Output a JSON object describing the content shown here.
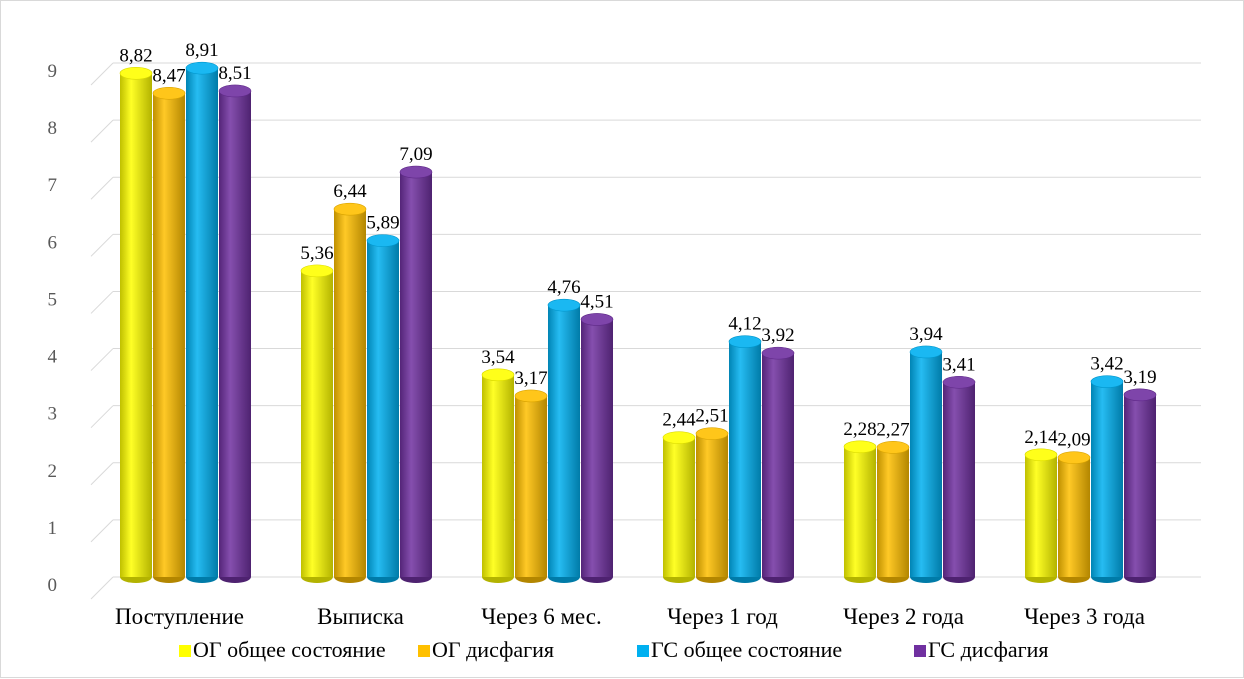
{
  "chart_data": {
    "type": "bar",
    "categories": [
      "Поступление",
      "Выписка",
      "Через 6 мес.",
      "Через 1 год",
      "Через 2 года",
      "Через 3 года"
    ],
    "series": [
      {
        "name": "ОГ общее состояние",
        "color": "#ffff00",
        "values": [
          8.82,
          5.36,
          3.54,
          2.44,
          2.28,
          2.14
        ],
        "labels": [
          "8,82",
          "5,36",
          "3,54",
          "2,44",
          "2,28",
          "2,14"
        ]
      },
      {
        "name": "ОГ дисфагия",
        "color": "#ffc000",
        "values": [
          8.47,
          6.44,
          3.17,
          2.51,
          2.27,
          2.09
        ],
        "labels": [
          "8,47",
          "6,44",
          "3,17",
          "2,51",
          "2,27",
          "2,09"
        ]
      },
      {
        "name": "ГС общее состояние",
        "color": "#00b0f0",
        "values": [
          8.91,
          5.89,
          4.76,
          4.12,
          3.94,
          3.42
        ],
        "labels": [
          "8,91",
          "5,89",
          "4,76",
          "4,12",
          "3,94",
          "3,42"
        ]
      },
      {
        "name": "ГС дисфагия",
        "color": "#7030a0",
        "values": [
          8.51,
          7.09,
          4.51,
          3.92,
          3.41,
          3.19
        ],
        "labels": [
          "8,51",
          "7,09",
          "4,51",
          "3,92",
          "3,41",
          "3,19"
        ]
      }
    ],
    "yticks": [
      "0",
      "1",
      "2",
      "3",
      "4",
      "5",
      "6",
      "7",
      "8",
      "9"
    ],
    "ylim": [
      0,
      9
    ],
    "grid": true,
    "legend": "bottom",
    "style": "3d-cylinder"
  }
}
